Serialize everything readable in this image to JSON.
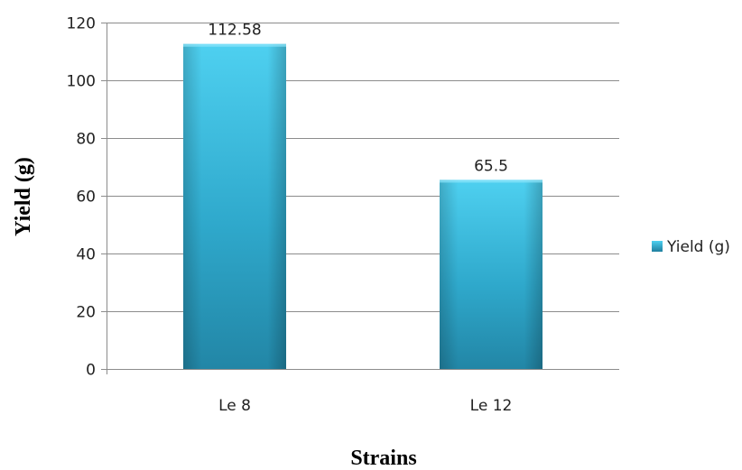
{
  "chart_data": {
    "type": "bar",
    "categories": [
      "Le 8",
      "Le 12"
    ],
    "series": [
      {
        "name": "Yield (g)",
        "values": [
          112.58,
          65.5
        ]
      }
    ],
    "data_labels": [
      "112.58",
      "65.5"
    ],
    "xlabel": "Strains",
    "ylabel": "Yield (g)",
    "ylim": [
      0,
      120
    ],
    "yticks": [
      0,
      20,
      40,
      60,
      80,
      100,
      120
    ],
    "grid": true,
    "legend_position": "right"
  },
  "colors": {
    "bar_light": "#48c8ec",
    "bar_mid": "#2fa9cc",
    "bar_dark": "#1f7f9f",
    "grid": "#8c8c8c"
  }
}
